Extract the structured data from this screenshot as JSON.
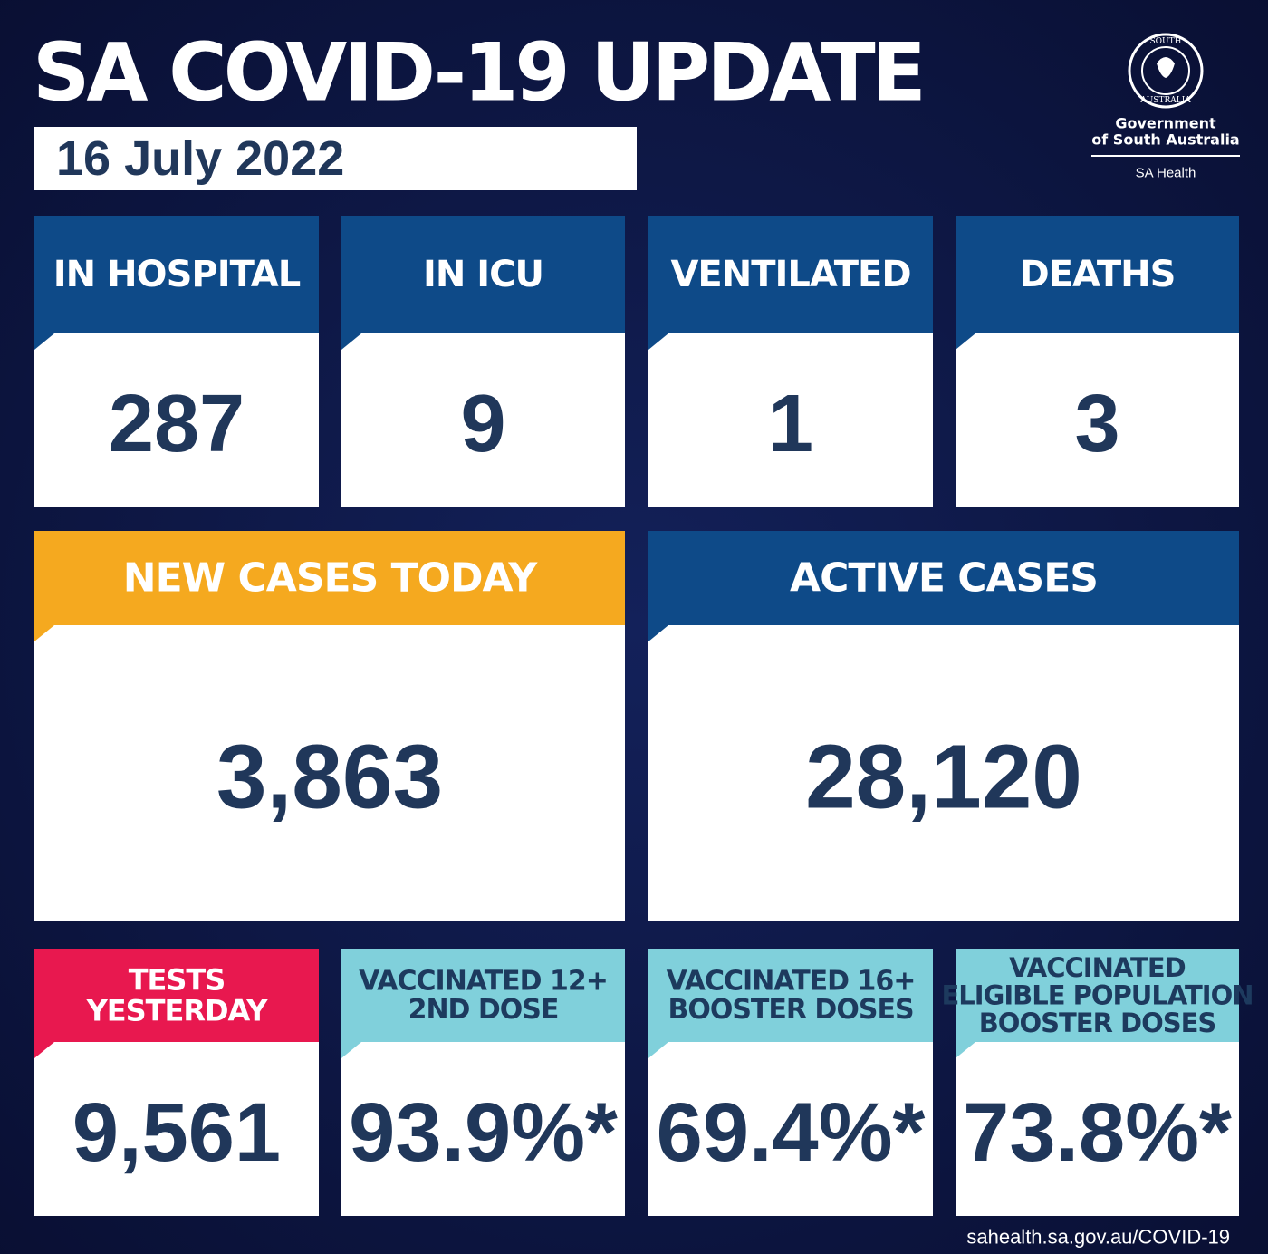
{
  "header": {
    "title": "SA COVID-19 UPDATE",
    "date": "16 July 2022"
  },
  "logo": {
    "emblem_top": "SOUTH",
    "emblem_bottom": "AUSTRALIA",
    "line1": "Government",
    "line2": "of South Australia",
    "line3": "SA Health"
  },
  "tiles": [
    {
      "label_lines": [
        "IN HOSPITAL"
      ],
      "value": "287"
    },
    {
      "label_lines": [
        "IN ICU"
      ],
      "value": "9"
    },
    {
      "label_lines": [
        "VENTILATED"
      ],
      "value": "1"
    },
    {
      "label_lines": [
        "DEATHS"
      ],
      "value": "3"
    },
    {
      "label_lines": [
        "NEW CASES TODAY"
      ],
      "value": "3,863"
    },
    {
      "label_lines": [
        "ACTIVE CASES"
      ],
      "value": "28,120"
    },
    {
      "label_lines": [
        "TESTS",
        "YESTERDAY"
      ],
      "value": "9,561"
    },
    {
      "label_lines": [
        "VACCINATED 12+",
        "2ND DOSE"
      ],
      "value": "93.9%*"
    },
    {
      "label_lines": [
        "VACCINATED 16+",
        "BOOSTER DOSES"
      ],
      "value": "69.4%*"
    },
    {
      "label_lines": [
        "VACCINATED",
        "ELIGIBLE POPULATION",
        "BOOSTER DOSES"
      ],
      "value": "73.8%*"
    }
  ],
  "footer": {
    "url": "sahealth.sa.gov.au/COVID-19"
  }
}
